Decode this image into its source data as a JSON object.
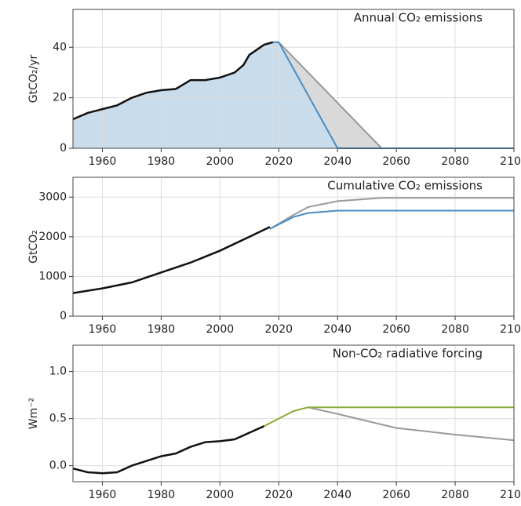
{
  "chart_data": [
    {
      "type": "line",
      "title": "Annual CO₂ emissions",
      "ylabel": "GtCO₂/yr",
      "xlim": [
        1950,
        2100
      ],
      "xticks": [
        1960,
        1980,
        2000,
        2020,
        2040,
        2060,
        2080,
        2100
      ],
      "ylim": [
        0,
        55
      ],
      "yticks": [
        0,
        20,
        40
      ],
      "grid": true,
      "series": [
        {
          "color": "#999999",
          "fill": "#d9d9d9",
          "x": [
            2018,
            2020,
            2055,
            2100
          ],
          "values": [
            42,
            42,
            0,
            0
          ]
        },
        {
          "color": "#4a8cc2",
          "fill": "#c8dceb",
          "x": [
            2018,
            2020,
            2040,
            2100
          ],
          "values": [
            42,
            42,
            0,
            0
          ]
        },
        {
          "color": "#111111",
          "fill": "#c8dceb",
          "x": [
            1950,
            1955,
            1960,
            1965,
            1970,
            1975,
            1980,
            1985,
            1990,
            1995,
            2000,
            2005,
            2008,
            2010,
            2015,
            2018
          ],
          "values": [
            11.5,
            14,
            15.5,
            17,
            20,
            22,
            23,
            23.5,
            27,
            27,
            28,
            30,
            33,
            37,
            41,
            42
          ]
        }
      ]
    },
    {
      "type": "line",
      "title": "Cumulative CO₂ emissions",
      "ylabel": "GtCO₂",
      "xlim": [
        1950,
        2100
      ],
      "xticks": [
        1960,
        1980,
        2000,
        2020,
        2040,
        2060,
        2080,
        2100
      ],
      "ylim": [
        0,
        3500
      ],
      "yticks": [
        0,
        1000,
        2000,
        3000
      ],
      "grid": true,
      "series": [
        {
          "color": "#999999",
          "x": [
            2017,
            2025,
            2030,
            2040,
            2055,
            2100
          ],
          "values": [
            2200,
            2550,
            2750,
            2900,
            2980,
            2980
          ]
        },
        {
          "color": "#4a8cc2",
          "x": [
            2017,
            2025,
            2030,
            2040,
            2100
          ],
          "values": [
            2200,
            2500,
            2600,
            2660,
            2660
          ]
        },
        {
          "color": "#111111",
          "x": [
            1950,
            1960,
            1970,
            1980,
            1990,
            2000,
            2010,
            2017
          ],
          "values": [
            580,
            700,
            850,
            1100,
            1350,
            1650,
            2000,
            2250
          ]
        }
      ]
    },
    {
      "type": "line",
      "title": "Non-CO₂ radiative forcing",
      "ylabel": "Wm⁻²",
      "xlim": [
        1950,
        2100
      ],
      "xticks": [
        1960,
        1980,
        2000,
        2020,
        2040,
        2060,
        2080,
        2100
      ],
      "ylim": [
        -0.17,
        1.28
      ],
      "yticks": [
        {
          "value": 0,
          "label": "0.0"
        },
        {
          "value": 0.5,
          "label": "0.5"
        },
        {
          "value": 1,
          "label": "1.0"
        }
      ],
      "grid": true,
      "series": [
        {
          "color": "#999999",
          "x": [
            2030,
            2040,
            2060,
            2080,
            2100
          ],
          "values": [
            0.62,
            0.55,
            0.4,
            0.33,
            0.27
          ]
        },
        {
          "color": "#8aaa3a",
          "x": [
            2015,
            2020,
            2025,
            2030,
            2100
          ],
          "values": [
            0.42,
            0.5,
            0.58,
            0.62,
            0.62
          ]
        },
        {
          "color": "#111111",
          "x": [
            1950,
            1955,
            1960,
            1965,
            1970,
            1975,
            1980,
            1985,
            1990,
            1995,
            2000,
            2005,
            2010,
            2015
          ],
          "values": [
            -0.03,
            -0.07,
            -0.08,
            -0.07,
            0.0,
            0.05,
            0.1,
            0.13,
            0.2,
            0.25,
            0.26,
            0.28,
            0.35,
            0.42
          ]
        }
      ]
    }
  ]
}
